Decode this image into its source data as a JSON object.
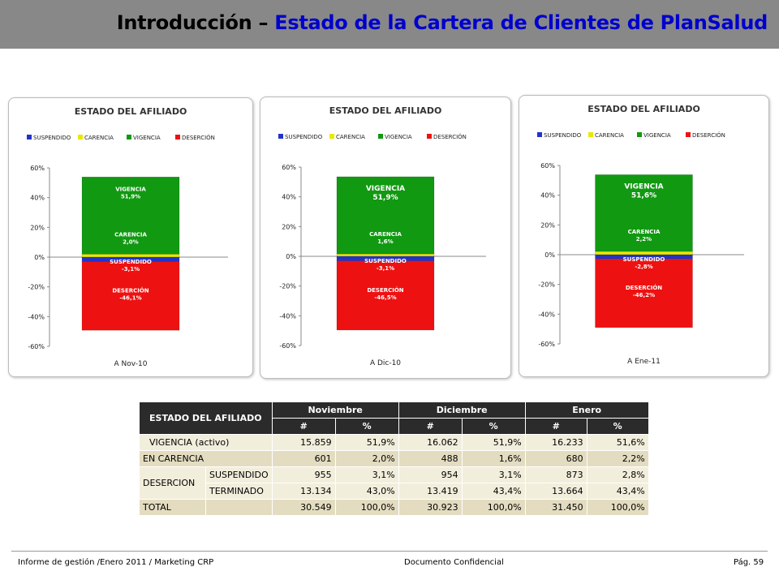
{
  "header": {
    "title_prefix": "Introducción – ",
    "title_main": "Estado de la Cartera de Clientes de PlanSalud"
  },
  "colors": {
    "suspendido": "#2233cc",
    "carencia": "#e8e800",
    "vigencia": "#119911",
    "desercion": "#ee1111",
    "header_bg": "#888888",
    "title_accent": "#0000cc"
  },
  "chart_data": [
    {
      "type": "bar",
      "stacked": true,
      "title": "ESTADO DEL AFILIADO",
      "legend": [
        "SUSPENDIDO",
        "CARENCIA",
        "VIGENCIA",
        "DESERCIÓN"
      ],
      "legend_position": "top",
      "categories": [
        "A Nov-10"
      ],
      "yticks": [
        "60%",
        "40%",
        "20%",
        "0%",
        "-20%",
        "-40%",
        "-60%"
      ],
      "ylim": [
        -60,
        60
      ],
      "series": [
        {
          "name": "SUSPENDIDO",
          "value": -3.1,
          "label": "SUSPENDIDO",
          "value_label": "-3,1%"
        },
        {
          "name": "CARENCIA",
          "value": 2.0,
          "label": "CARENCIA",
          "value_label": "2,0%"
        },
        {
          "name": "VIGENCIA",
          "value": 51.9,
          "label": "VIGENCIA",
          "value_label": "51,9%"
        },
        {
          "name": "DESERCIÓN",
          "value": -46.1,
          "label": "DESERCIÓN",
          "value_label": "-46,1%"
        }
      ]
    },
    {
      "type": "bar",
      "stacked": true,
      "title": "ESTADO DEL AFILIADO",
      "legend": [
        "SUSPENDIDO",
        "CARENCIA",
        "VIGENCIA",
        "DESERCIÓN"
      ],
      "legend_position": "top",
      "categories": [
        "A Dic-10"
      ],
      "yticks": [
        "60%",
        "40%",
        "20%",
        "0%",
        "-20%",
        "-40%",
        "-60%"
      ],
      "ylim": [
        -60,
        60
      ],
      "series": [
        {
          "name": "SUSPENDIDO",
          "value": -3.1,
          "label": "SUSPENDIDO",
          "value_label": "-3,1%"
        },
        {
          "name": "CARENCIA",
          "value": 1.6,
          "label": "CARENCIA",
          "value_label": "1,6%"
        },
        {
          "name": "VIGENCIA",
          "value": 51.9,
          "label": "VIGENCIA",
          "value_label": "51,9%"
        },
        {
          "name": "DESERCIÓN",
          "value": -46.5,
          "label": "DESERCIÓN",
          "value_label": "-46,5%"
        }
      ]
    },
    {
      "type": "bar",
      "stacked": true,
      "title": "ESTADO DEL AFILIADO",
      "legend": [
        "SUSPENDIDO",
        "CARENCIA",
        "VIGENCIA",
        "DESERCIÓN"
      ],
      "legend_position": "top",
      "categories": [
        "A Ene-11"
      ],
      "yticks": [
        "60%",
        "40%",
        "20%",
        "0%",
        "-20%",
        "-40%",
        "-60%"
      ],
      "ylim": [
        -60,
        60
      ],
      "series": [
        {
          "name": "SUSPENDIDO",
          "value": -2.8,
          "label": "SUSPENDIDO",
          "value_label": "-2,8%"
        },
        {
          "name": "CARENCIA",
          "value": 2.2,
          "label": "CARENCIA",
          "value_label": "2,2%"
        },
        {
          "name": "VIGENCIA",
          "value": 51.6,
          "label": "VIGENCIA",
          "value_label": "51,6%"
        },
        {
          "name": "DESERCIÓN",
          "value": -46.2,
          "label": "DESERCIÓN",
          "value_label": "-46,2%"
        }
      ]
    }
  ],
  "table": {
    "corner": "ESTADO DEL AFILIADO",
    "months": [
      "Noviembre",
      "Diciembre",
      "Enero"
    ],
    "subheaders": [
      "#",
      "%"
    ],
    "vigencia": {
      "label": "VIGENCIA (activo)",
      "values": [
        "15.859",
        "51,9%",
        "16.062",
        "51,9%",
        "16.233",
        "51,6%"
      ]
    },
    "carencia": {
      "label": "EN CARENCIA",
      "values": [
        "601",
        "2,0%",
        "488",
        "1,6%",
        "680",
        "2,2%"
      ]
    },
    "desercion_label": "DESERCION",
    "suspendido": {
      "label": "SUSPENDIDO",
      "values": [
        "955",
        "3,1%",
        "954",
        "3,1%",
        "873",
        "2,8%"
      ]
    },
    "terminado": {
      "label": "TERMINADO",
      "values": [
        "13.134",
        "43,0%",
        "13.419",
        "43,4%",
        "13.664",
        "43,4%"
      ]
    },
    "total": {
      "label": "TOTAL",
      "values": [
        "30.549",
        "100,0%",
        "30.923",
        "100,0%",
        "31.450",
        "100,0%"
      ]
    }
  },
  "footer": {
    "left": "Informe de gestión /Enero 2011 / Marketing CRP",
    "center": "Documento Confidencial",
    "right": "Pág. 59"
  }
}
